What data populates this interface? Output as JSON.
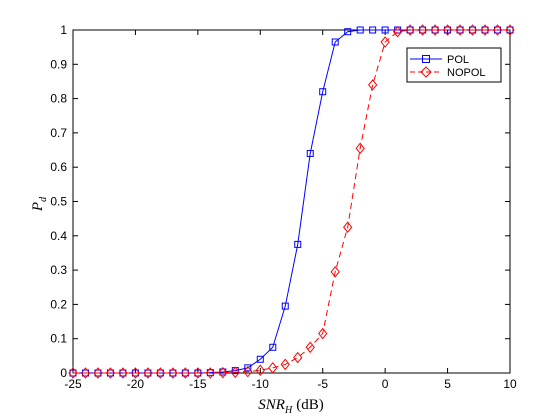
{
  "chart_data": {
    "type": "line",
    "title": "",
    "xlabel": {
      "main": "SNR",
      "sub": "H",
      "unit": "(dB)"
    },
    "ylabel": {
      "main": "P",
      "sub": "d"
    },
    "xlim": [
      -25,
      10
    ],
    "ylim": [
      0,
      1
    ],
    "xticks": [
      -25,
      -20,
      -15,
      -10,
      -5,
      0,
      5,
      10
    ],
    "yticks": [
      0,
      0.1,
      0.2,
      0.3,
      0.4,
      0.5,
      0.6,
      0.7,
      0.8,
      0.9,
      1
    ],
    "grid": false,
    "legend_position": "top-right",
    "x": [
      -25,
      -24,
      -23,
      -22,
      -21,
      -20,
      -19,
      -18,
      -17,
      -16,
      -15,
      -14,
      -13,
      -12,
      -11,
      -10,
      -9,
      -8,
      -7,
      -6,
      -5,
      -4,
      -3,
      -2,
      -1,
      0,
      1,
      2,
      3,
      4,
      5,
      6,
      7,
      8,
      9,
      10
    ],
    "series": [
      {
        "name": "POL",
        "color": "#0000ff",
        "marker": "square",
        "line": "solid",
        "values": [
          0,
          0,
          0,
          0,
          0,
          0,
          0,
          0,
          0,
          0,
          0,
          0.001,
          0.003,
          0.007,
          0.015,
          0.04,
          0.075,
          0.195,
          0.375,
          0.64,
          0.82,
          0.965,
          0.995,
          1,
          1,
          1,
          1,
          1,
          1,
          1,
          1,
          1,
          1,
          1,
          1,
          1
        ]
      },
      {
        "name": "NOPOL",
        "color": "#ff0000",
        "marker": "diamond",
        "line": "dashed",
        "values": [
          0,
          0,
          0,
          0,
          0,
          0,
          0,
          0,
          0,
          0,
          0,
          0,
          0.001,
          0.002,
          0.004,
          0.008,
          0.015,
          0.025,
          0.045,
          0.075,
          0.115,
          0.295,
          0.425,
          0.655,
          0.84,
          0.965,
          0.995,
          1,
          1,
          1,
          1,
          1,
          1,
          1,
          1,
          1
        ]
      }
    ]
  }
}
